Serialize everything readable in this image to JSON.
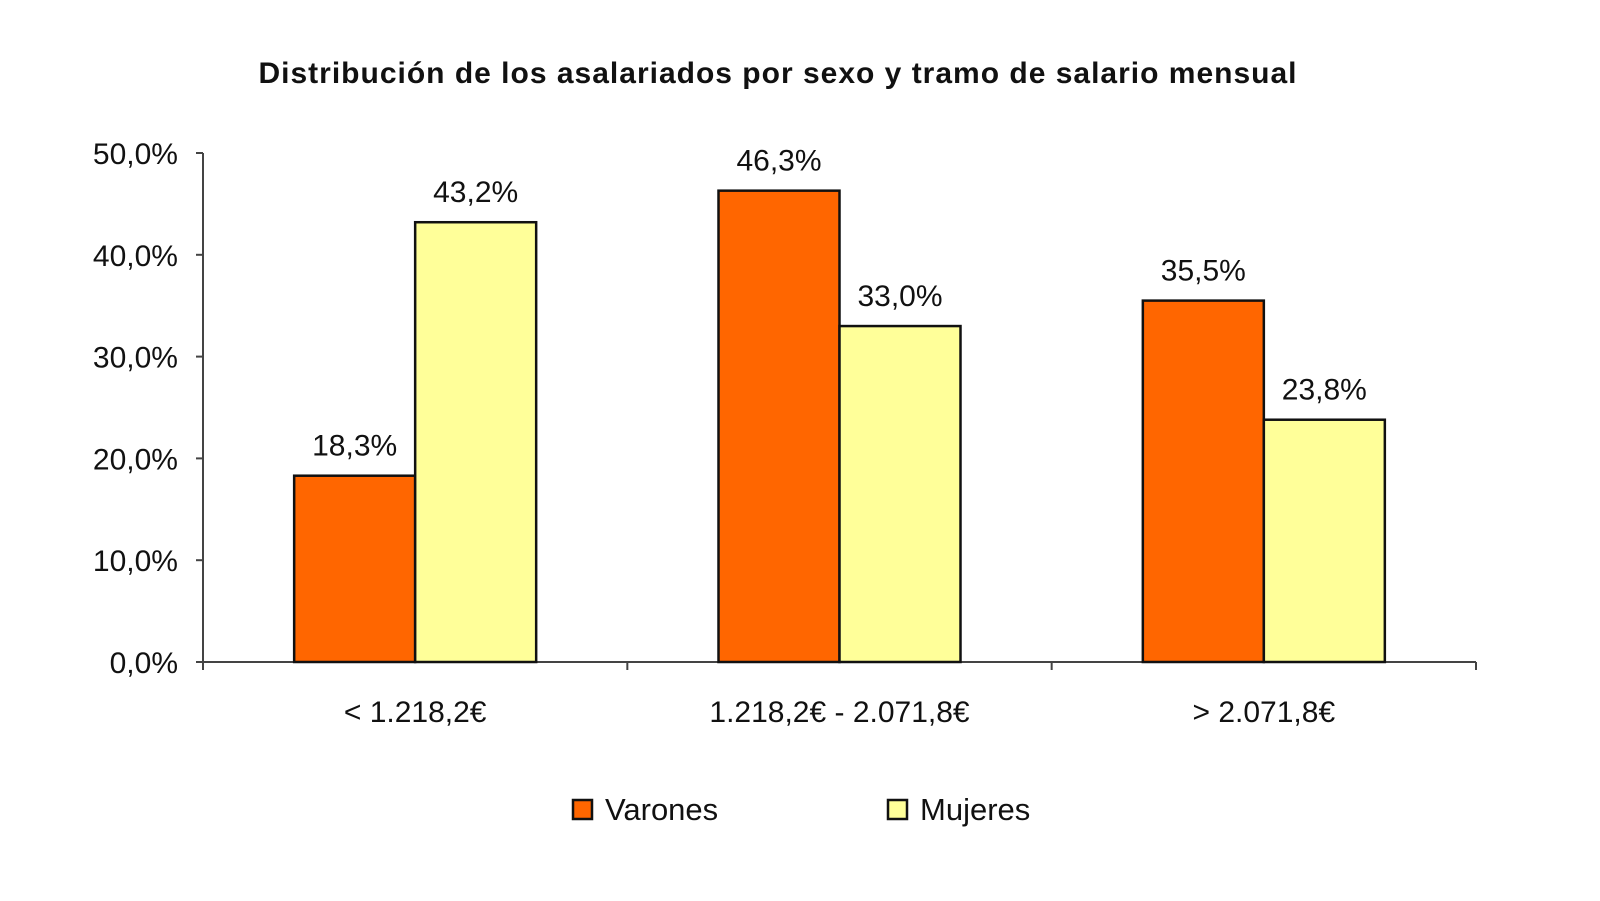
{
  "chart_data": {
    "type": "bar",
    "title": "Distribución de los asalariados por sexo y tramo de salario mensual",
    "xlabel": "",
    "ylabel": "",
    "categories": [
      "< 1.218,2€",
      "1.218,2€ - 2.071,8€",
      "> 2.071,8€"
    ],
    "series": [
      {
        "name": "Varones",
        "values": [
          18.3,
          46.3,
          35.5
        ],
        "labels": [
          "18,3%",
          "46,3%",
          "35,5%"
        ],
        "color": "#FF6600"
      },
      {
        "name": "Mujeres",
        "values": [
          43.2,
          33.0,
          23.8
        ],
        "labels": [
          "43,2%",
          "33,0%",
          "23,8%"
        ],
        "color": "#FFFF99"
      }
    ],
    "ylim": [
      0,
      50
    ],
    "yticks": [
      "0,0%",
      "10,0%",
      "20,0%",
      "30,0%",
      "40,0%",
      "50,0%"
    ],
    "grid": false,
    "legend": "bottom"
  }
}
